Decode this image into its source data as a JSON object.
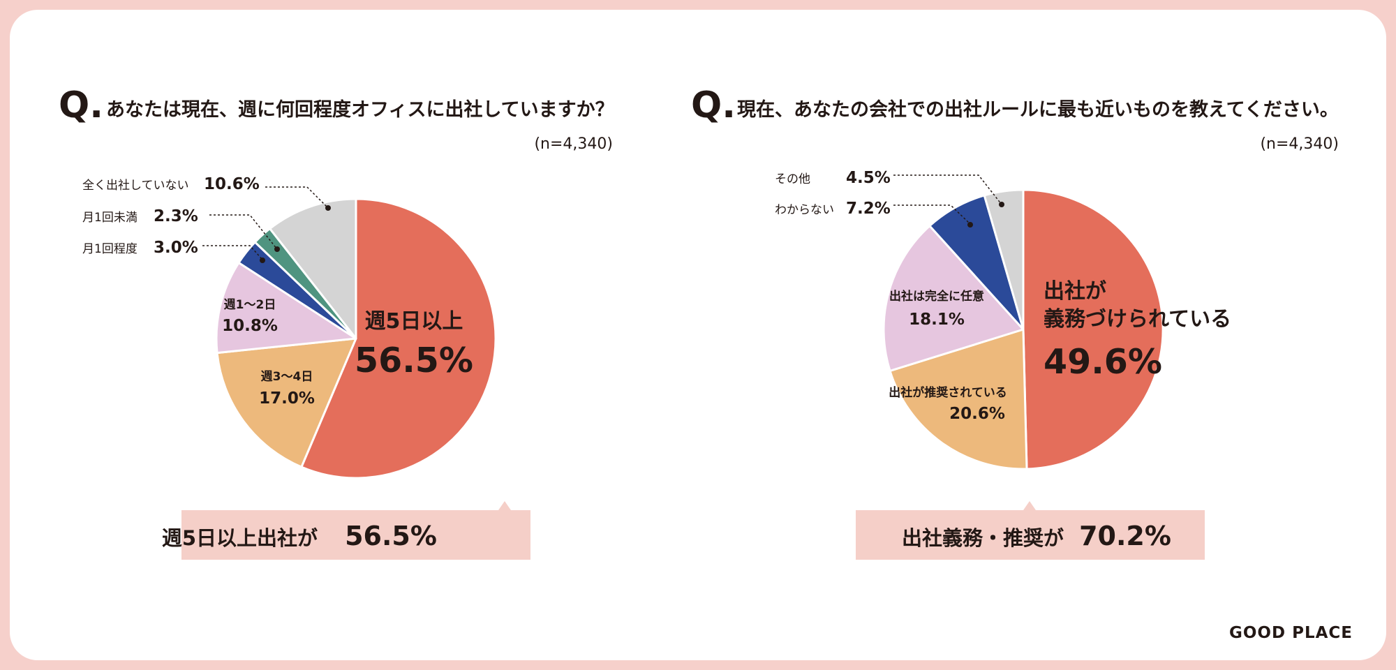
{
  "brand": "GOOD PLACE",
  "colors": {
    "background": "#f6d0cb",
    "card": "#ffffff",
    "text": "#231815",
    "callout": "#f5cfc8"
  },
  "chart_data": [
    {
      "type": "pie",
      "title_mark": "Q.",
      "title": "あなたは現在、週に何回程度オフィスに出社していますか？",
      "sample_size": "(n=4,340)",
      "slices": [
        {
          "label": "週5日以上",
          "value": 56.5,
          "value_label": "56.5%",
          "color": "#e46e5b"
        },
        {
          "label": "週3〜4日",
          "value": 17.0,
          "value_label": "17.0%",
          "color": "#edb97c"
        },
        {
          "label": "週1〜2日",
          "value": 10.8,
          "value_label": "10.8%",
          "color": "#e6c6df"
        },
        {
          "label": "月1回程度",
          "value": 3.0,
          "value_label": "3.0%",
          "color": "#2b4a99"
        },
        {
          "label": "月1回未満",
          "value": 2.3,
          "value_label": "2.3%",
          "color": "#4f9480"
        },
        {
          "label": "全く出社していない",
          "value": 10.6,
          "value_label": "10.6%",
          "color": "#d4d4d4"
        }
      ],
      "callout": {
        "text": "週5日以上出社が",
        "value": "56.5%"
      }
    },
    {
      "type": "pie",
      "title_mark": "Q.",
      "title": "現在、あなたの会社での出社ルールに最も近いものを教えてください。",
      "sample_size": "(n=4,340)",
      "slices": [
        {
          "label_lines": [
            "出社が",
            "義務づけられている"
          ],
          "value": 49.6,
          "value_label": "49.6%",
          "color": "#e46e5b"
        },
        {
          "label": "出社が推奨されている",
          "value": 20.6,
          "value_label": "20.6%",
          "color": "#edb97c"
        },
        {
          "label": "出社は完全に任意",
          "value": 18.1,
          "value_label": "18.1%",
          "color": "#e6c6df"
        },
        {
          "label": "わからない",
          "value": 7.2,
          "value_label": "7.2%",
          "color": "#2b4a99"
        },
        {
          "label": "その他",
          "value": 4.5,
          "value_label": "4.5%",
          "color": "#d4d4d4"
        }
      ],
      "callout": {
        "text": "出社義務・推奨が",
        "value": "70.2%"
      }
    }
  ]
}
